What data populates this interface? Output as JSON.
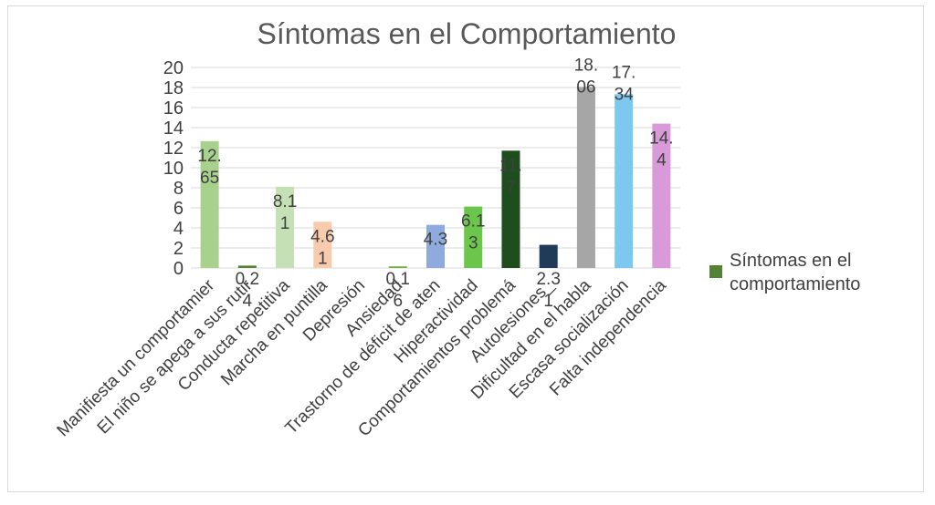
{
  "chart_data": {
    "type": "bar",
    "title": "Síntomas en el Comportamiento",
    "xlabel": "",
    "ylabel": "",
    "ylim": [
      0,
      20
    ],
    "yticks": [
      "0",
      "2",
      "4",
      "6",
      "8",
      "10",
      "12",
      "14",
      "16",
      "18",
      "20"
    ],
    "grid": true,
    "legend_position": "right",
    "categories": [
      "Manifiesta un comportamier",
      "El niño se apega a sus rutir",
      "Conducta repetitiva",
      "Marcha en puntilla",
      "Depresión",
      "Ansiedad",
      "Trastorno de déficit de aten",
      "Hiperactividad",
      "Comportamientos problemá",
      "Autolesiones_",
      "Dificultad en el habla",
      "Escasa socialización",
      "Falta independencia"
    ],
    "series": [
      {
        "name": "Síntomas en el comportamiento",
        "values": [
          12.65,
          0.24,
          8.11,
          4.61,
          0,
          0.16,
          4.3,
          6.13,
          11.7,
          2.31,
          18.06,
          17.34,
          14.4
        ]
      }
    ],
    "data_labels": [
      [
        "12.",
        "65"
      ],
      [
        "0.2",
        "4"
      ],
      [
        "8.1",
        "1"
      ],
      [
        "4.6",
        "1"
      ],
      [
        "",
        ""
      ],
      [
        "0.1",
        "6"
      ],
      [
        "4.3",
        ""
      ],
      [
        "6.1",
        "3"
      ],
      [
        "11.",
        "7"
      ],
      [
        "2.3",
        "1"
      ],
      [
        "18.",
        "06"
      ],
      [
        "17.",
        "34"
      ],
      [
        "14.",
        "4"
      ]
    ],
    "bar_colors": [
      "#a9d18e",
      "#548235",
      "#c5e0b4",
      "#f8cbad",
      "#d9d9d9",
      "#70ad47",
      "#8faadc",
      "#6cc64c",
      "#1e4d1e",
      "#1f3b57",
      "#a6a6a6",
      "#7cc8ee",
      "#d99ad9"
    ],
    "colors": {
      "gridline": "#d9d9d9",
      "axis_text": "#404040",
      "title_text": "#595959",
      "legend_swatch": "#548235"
    }
  }
}
